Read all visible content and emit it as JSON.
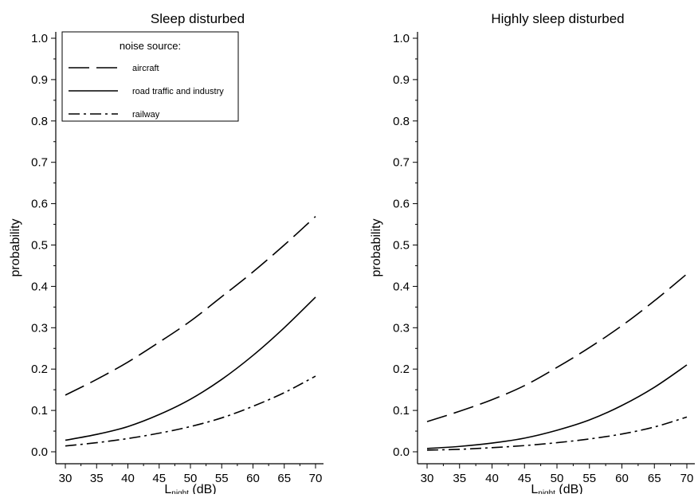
{
  "chart_data": [
    {
      "type": "line",
      "title": "Sleep disturbed",
      "ylabel": "probability",
      "xlabel_main": "L",
      "xlabel_sub": "night",
      "xlabel_unit": " (dB)",
      "xlim": [
        30,
        70
      ],
      "ylim": [
        0,
        1
      ],
      "xticks": [
        30,
        35,
        40,
        45,
        50,
        55,
        60,
        65,
        70
      ],
      "yticks": [
        0.0,
        0.1,
        0.2,
        0.3,
        0.4,
        0.5,
        0.6,
        0.7,
        0.8,
        0.9,
        1.0
      ],
      "ytick_labels": [
        "0.0",
        "0.1",
        "0.2",
        "0.3",
        "0.4",
        "0.5",
        "0.6",
        "0.7",
        "0.8",
        "0.9",
        "1.0"
      ],
      "grid": false,
      "legend": {
        "title": "noise source:",
        "placement": "top-left",
        "entries": [
          "aircraft",
          "road traffic and industry",
          "railway"
        ]
      },
      "x": [
        30,
        35,
        40,
        45,
        50,
        55,
        60,
        65,
        70
      ],
      "series": [
        {
          "name": "aircraft",
          "style": "long-dash",
          "values": [
            0.137,
            0.175,
            0.217,
            0.265,
            0.316,
            0.375,
            0.435,
            0.5,
            0.569
          ]
        },
        {
          "name": "road traffic and industry",
          "style": "solid",
          "values": [
            0.028,
            0.042,
            0.061,
            0.09,
            0.127,
            0.175,
            0.233,
            0.3,
            0.374
          ]
        },
        {
          "name": "railway",
          "style": "dash-dot",
          "values": [
            0.014,
            0.022,
            0.032,
            0.045,
            0.061,
            0.082,
            0.11,
            0.143,
            0.183
          ]
        }
      ]
    },
    {
      "type": "line",
      "title": "Highly sleep disturbed",
      "ylabel": "probability",
      "xlabel_main": "L",
      "xlabel_sub": "night",
      "xlabel_unit": " (dB)",
      "xlim": [
        30,
        70
      ],
      "ylim": [
        0,
        1
      ],
      "xticks": [
        30,
        35,
        40,
        45,
        50,
        55,
        60,
        65,
        70
      ],
      "yticks": [
        0.0,
        0.1,
        0.2,
        0.3,
        0.4,
        0.5,
        0.6,
        0.7,
        0.8,
        0.9,
        1.0
      ],
      "ytick_labels": [
        "0.0",
        "0.1",
        "0.2",
        "0.3",
        "0.4",
        "0.5",
        "0.6",
        "0.7",
        "0.8",
        "0.9",
        "1.0"
      ],
      "grid": false,
      "x": [
        30,
        35,
        40,
        45,
        50,
        55,
        60,
        65,
        70
      ],
      "series": [
        {
          "name": "aircraft",
          "style": "long-dash",
          "values": [
            0.073,
            0.098,
            0.126,
            0.16,
            0.204,
            0.252,
            0.305,
            0.365,
            0.43
          ]
        },
        {
          "name": "road traffic and industry",
          "style": "solid",
          "values": [
            0.008,
            0.013,
            0.021,
            0.033,
            0.052,
            0.077,
            0.112,
            0.156,
            0.21
          ]
        },
        {
          "name": "railway",
          "style": "dash-dot",
          "values": [
            0.004,
            0.006,
            0.01,
            0.015,
            0.022,
            0.031,
            0.043,
            0.06,
            0.084
          ]
        }
      ]
    }
  ]
}
